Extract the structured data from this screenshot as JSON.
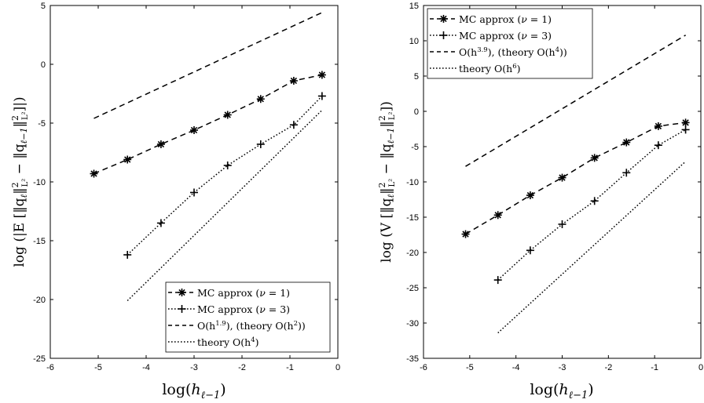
{
  "chart_data": [
    {
      "type": "line",
      "xlabel": "log(h_{ℓ−1})",
      "ylabel": "log(|E[‖q_ℓ‖²_{L²} − ‖q_{ℓ−1}‖²_{L²}]|)",
      "xlim": [
        -6,
        0
      ],
      "ylim": [
        -25,
        5
      ],
      "xticks": [
        "-6",
        "-5",
        "-4",
        "-3",
        "-2",
        "-1",
        "0"
      ],
      "yticks": [
        "5",
        "0",
        "-5",
        "-10",
        "-15",
        "-20",
        "-25"
      ],
      "grid": false,
      "legend_position": "bottom-right",
      "series": [
        {
          "name": "MC approx (ν = 1)",
          "marker": "asterisk",
          "line": "dashed",
          "x": [
            -5.09,
            -4.39,
            -3.69,
            -3.0,
            -2.3,
            -1.61,
            -0.92,
            -0.33
          ],
          "y": [
            -9.3,
            -8.1,
            -6.8,
            -5.6,
            -4.3,
            -2.95,
            -1.4,
            -0.9
          ]
        },
        {
          "name": "MC approx (ν = 3)",
          "marker": "plus",
          "line": "dotted",
          "x": [
            -4.39,
            -3.69,
            -3.0,
            -2.3,
            -1.61,
            -0.92,
            -0.33
          ],
          "y": [
            -16.2,
            -13.5,
            -10.9,
            -8.6,
            -6.8,
            -5.15,
            -2.7
          ]
        },
        {
          "name": "O(h^1.9), (theory O(h²))",
          "marker": "none",
          "line": "dashed",
          "x": [
            -5.09,
            -0.33
          ],
          "y": [
            -4.6,
            4.4
          ]
        },
        {
          "name": "theory O(h⁴)",
          "marker": "none",
          "line": "dotted",
          "x": [
            -4.39,
            -0.33
          ],
          "y": [
            -20.1,
            -3.9
          ]
        }
      ]
    },
    {
      "type": "line",
      "xlabel": "log(h_{ℓ−1})",
      "ylabel": "log(V[‖q_ℓ‖²_{L²} − ‖q_{ℓ−1}‖²_{L²}])",
      "xlim": [
        -6,
        0
      ],
      "ylim": [
        -35,
        15
      ],
      "xticks": [
        "-6",
        "-5",
        "-4",
        "-3",
        "-2",
        "-1",
        "0"
      ],
      "yticks": [
        "15",
        "10",
        "5",
        "0",
        "-5",
        "-10",
        "-15",
        "-20",
        "-25",
        "-30",
        "-35"
      ],
      "grid": false,
      "legend_position": "top-left",
      "series": [
        {
          "name": "MC approx (ν = 1)",
          "marker": "asterisk",
          "line": "dashed",
          "x": [
            -5.09,
            -4.39,
            -3.69,
            -3.0,
            -2.3,
            -1.61,
            -0.92,
            -0.33
          ],
          "y": [
            -17.4,
            -14.7,
            -11.9,
            -9.4,
            -6.6,
            -4.4,
            -2.1,
            -1.6
          ]
        },
        {
          "name": "MC approx (ν = 3)",
          "marker": "plus",
          "line": "dotted",
          "x": [
            -4.39,
            -3.69,
            -3.0,
            -2.3,
            -1.61,
            -0.92,
            -0.33
          ],
          "y": [
            -23.9,
            -19.7,
            -16.0,
            -12.7,
            -8.7,
            -4.8,
            -2.6
          ]
        },
        {
          "name": "O(h^3.9), (theory O(h⁴))",
          "marker": "none",
          "line": "dashed",
          "x": [
            -5.09,
            -0.33
          ],
          "y": [
            -7.8,
            10.8
          ]
        },
        {
          "name": "theory O(h⁶)",
          "marker": "none",
          "line": "dotted",
          "x": [
            -4.39,
            -0.33
          ],
          "y": [
            -31.4,
            -7.1
          ]
        }
      ]
    }
  ],
  "panels": [
    {
      "xlabel_parts": {
        "base": "log(",
        "h": "h",
        "sub": "ℓ−1",
        "close": ")"
      },
      "ylabel_text": "log (|E [‖q",
      "ylabel_a": "ℓ",
      "ylabel_b": "‖",
      "ylabel_c": "2",
      "ylabel_d": "L²",
      "ylabel_e": " − ‖q",
      "ylabel_f": "ℓ−1",
      "ylabel_g": "‖",
      "ylabel_h": "2",
      "ylabel_i": "L²",
      "ylabel_j": "]|)",
      "legend": [
        {
          "pre": "MC approx (",
          "nu": "ν",
          "post": " = 1)"
        },
        {
          "pre": "MC approx (",
          "nu": "ν",
          "post": " = 3)"
        },
        {
          "pre": "O(h",
          "sup": "1.9",
          "post": "), (theory O(h",
          "sup2": "2",
          "post2": "))"
        },
        {
          "pre": "theory O(h",
          "sup": "4",
          "post": ")"
        }
      ]
    },
    {
      "xlabel_parts": {
        "base": "log(",
        "h": "h",
        "sub": "ℓ−1",
        "close": ")"
      },
      "ylabel_text": "log (V [‖q",
      "ylabel_a": "ℓ",
      "ylabel_b": "‖",
      "ylabel_c": "2",
      "ylabel_d": "L²",
      "ylabel_e": " − ‖q",
      "ylabel_f": "ℓ−1",
      "ylabel_g": "‖",
      "ylabel_h": "2",
      "ylabel_i": "L²",
      "ylabel_j": "])",
      "legend": [
        {
          "pre": "MC approx (",
          "nu": "ν",
          "post": " = 1)"
        },
        {
          "pre": "MC approx (",
          "nu": "ν",
          "post": " = 3)"
        },
        {
          "pre": "O(h",
          "sup": "3.9",
          "post": "), (theory O(h",
          "sup2": "4",
          "post2": "))"
        },
        {
          "pre": "theory O(h",
          "sup": "6",
          "post": ")"
        }
      ]
    }
  ]
}
